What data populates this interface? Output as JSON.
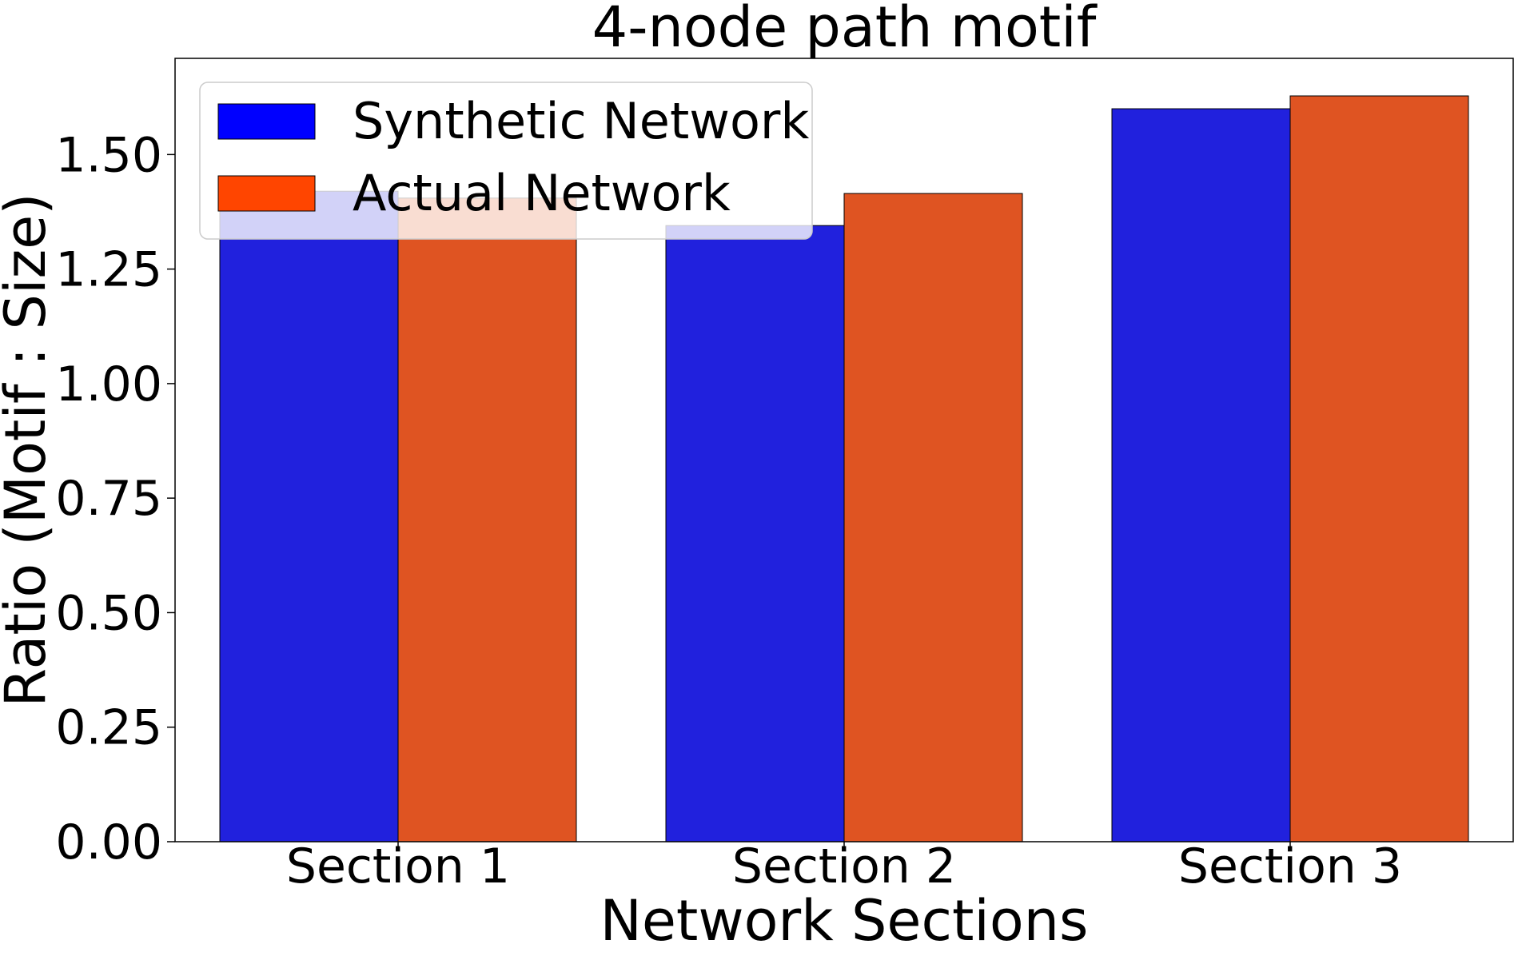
{
  "chart_data": {
    "type": "bar",
    "title": "4-node path motif",
    "xlabel": "Network Sections",
    "ylabel": "Ratio (Motif : Size)",
    "categories": [
      "Section 1",
      "Section 2",
      "Section 3"
    ],
    "series": [
      {
        "name": "Synthetic Network",
        "values": [
          1.42,
          1.345,
          1.6
        ],
        "color": "#2121dd",
        "legend_color": "#0000ff"
      },
      {
        "name": "Actual Network",
        "values": [
          1.405,
          1.415,
          1.628
        ],
        "color": "#df5422",
        "legend_color": "#ff4500"
      }
    ],
    "ylim": [
      0,
      1.71
    ],
    "yticks": [
      0,
      0.25,
      0.5,
      0.75,
      1.0,
      1.25,
      1.5
    ],
    "ytick_labels": [
      "0.00",
      "0.25",
      "0.50",
      "0.75",
      "1.00",
      "1.25",
      "1.50"
    ],
    "grid": false,
    "legend_position": "upper-left"
  }
}
